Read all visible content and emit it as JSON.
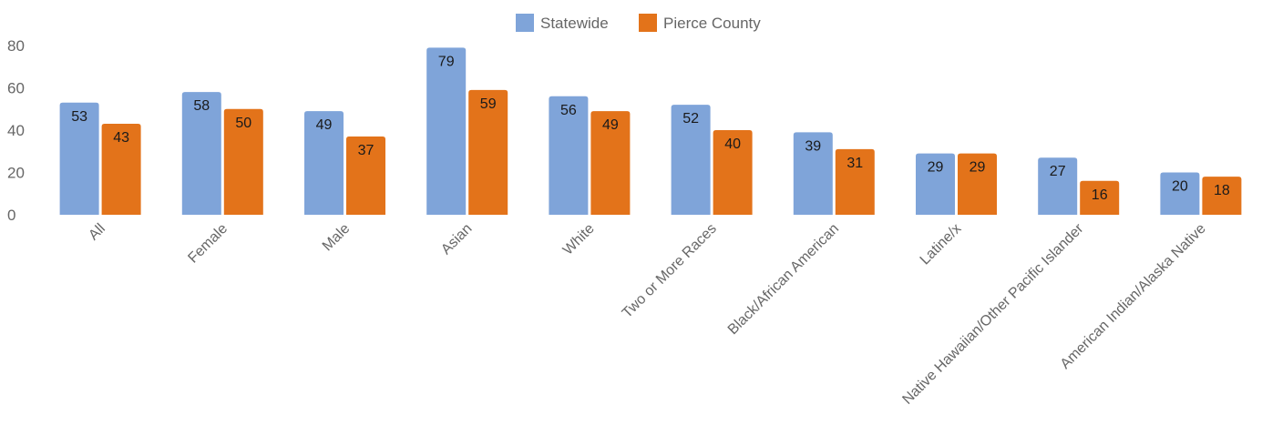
{
  "chart_data": {
    "type": "bar",
    "categories": [
      "All",
      "Female",
      "Male",
      "Asian",
      "White",
      "Two or More Races",
      "Black/African American",
      "Latine/x",
      "Native Hawaiian/Other Pacific Islander",
      "American Indian/Alaska Native"
    ],
    "series": [
      {
        "name": "Statewide",
        "color": "#7fa4d9",
        "values": [
          53,
          58,
          49,
          79,
          56,
          52,
          39,
          29,
          27,
          20
        ]
      },
      {
        "name": "Pierce County",
        "color": "#e3731a",
        "values": [
          43,
          50,
          37,
          59,
          49,
          40,
          31,
          29,
          16,
          18
        ]
      }
    ],
    "yticks": [
      "0",
      "20",
      "40",
      "60",
      "80"
    ],
    "ylim": [
      0,
      80
    ],
    "grid": false,
    "legend_position": "top-center",
    "data_labels": true
  }
}
